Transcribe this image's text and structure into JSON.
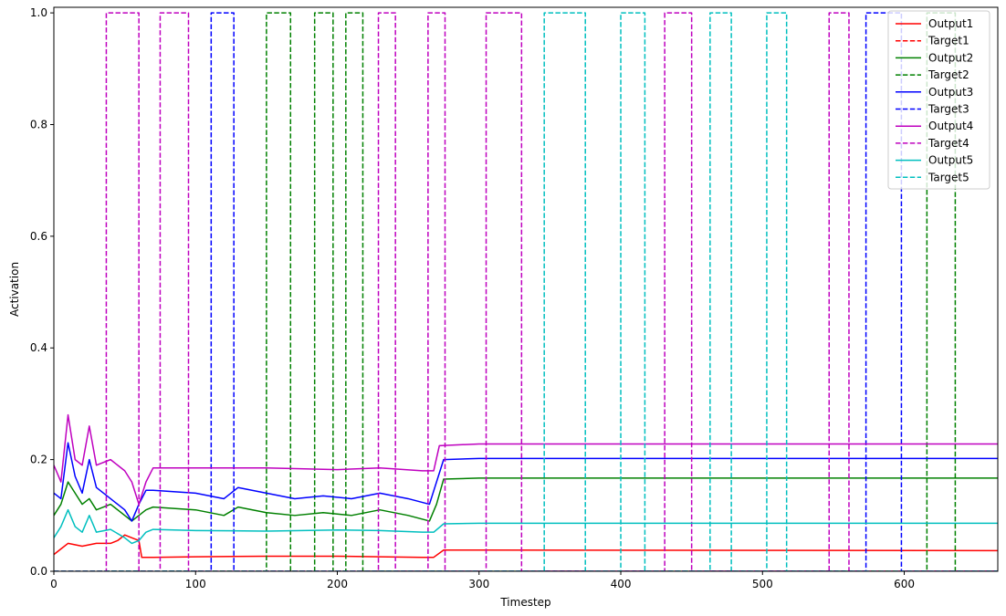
{
  "chart_data": {
    "type": "line",
    "title": "",
    "xlabel": "Timestep",
    "ylabel": "Activation",
    "xlim": [
      0,
      666
    ],
    "ylim": [
      0,
      1.01
    ],
    "xticks": [
      0,
      100,
      200,
      300,
      400,
      500,
      600
    ],
    "yticks": [
      0.0,
      0.2,
      0.4,
      0.6,
      0.8,
      1.0
    ],
    "xtick_labels": [
      "0",
      "100",
      "200",
      "300",
      "400",
      "500",
      "600"
    ],
    "ytick_labels": [
      "0.0",
      "0.2",
      "0.4",
      "0.6",
      "0.8",
      "1.0"
    ],
    "grid": false,
    "legend_position": "top-right",
    "series": [
      {
        "name": "Output1",
        "color": "#ff0000",
        "style": "solid",
        "x": [
          0,
          5,
          10,
          20,
          30,
          40,
          45,
          50,
          55,
          60,
          62,
          70,
          100,
          150,
          200,
          230,
          260,
          268,
          275,
          300,
          666
        ],
        "y": [
          0.03,
          0.04,
          0.05,
          0.045,
          0.05,
          0.05,
          0.055,
          0.065,
          0.06,
          0.055,
          0.025,
          0.025,
          0.026,
          0.027,
          0.027,
          0.026,
          0.025,
          0.025,
          0.038,
          0.038,
          0.037
        ]
      },
      {
        "name": "Target1",
        "color": "#ff0000",
        "style": "dashed",
        "x": [
          0,
          666
        ],
        "y": [
          0,
          0
        ]
      },
      {
        "name": "Output2",
        "color": "#008000",
        "style": "solid",
        "x": [
          0,
          5,
          10,
          15,
          20,
          25,
          30,
          40,
          50,
          55,
          60,
          65,
          70,
          100,
          120,
          130,
          150,
          170,
          190,
          210,
          230,
          250,
          265,
          270,
          275,
          300,
          666
        ],
        "y": [
          0.1,
          0.12,
          0.16,
          0.14,
          0.12,
          0.13,
          0.11,
          0.12,
          0.1,
          0.09,
          0.1,
          0.11,
          0.115,
          0.11,
          0.1,
          0.115,
          0.105,
          0.1,
          0.105,
          0.1,
          0.11,
          0.1,
          0.09,
          0.12,
          0.165,
          0.167,
          0.167
        ]
      },
      {
        "name": "Target2",
        "color": "#008000",
        "style": "dashed",
        "x": [
          0,
          150,
          150,
          167,
          167,
          184,
          184,
          197,
          197,
          206,
          206,
          218,
          218,
          616,
          616,
          636,
          636,
          666
        ],
        "y": [
          0,
          0,
          1,
          1,
          0,
          0,
          1,
          1,
          0,
          0,
          1,
          1,
          0,
          0,
          1,
          1,
          0,
          0
        ]
      },
      {
        "name": "Output3",
        "color": "#0000ff",
        "style": "solid",
        "x": [
          0,
          5,
          10,
          15,
          20,
          25,
          30,
          40,
          50,
          55,
          60,
          65,
          70,
          100,
          120,
          130,
          150,
          170,
          190,
          210,
          230,
          250,
          265,
          270,
          275,
          300,
          666
        ],
        "y": [
          0.14,
          0.13,
          0.23,
          0.17,
          0.14,
          0.2,
          0.15,
          0.13,
          0.11,
          0.09,
          0.12,
          0.145,
          0.145,
          0.14,
          0.13,
          0.15,
          0.14,
          0.13,
          0.135,
          0.13,
          0.14,
          0.13,
          0.12,
          0.16,
          0.2,
          0.202,
          0.202
        ]
      },
      {
        "name": "Target3",
        "color": "#0000ff",
        "style": "dashed",
        "x": [
          0,
          111,
          111,
          127,
          127,
          573,
          573,
          598,
          598,
          666
        ],
        "y": [
          0,
          0,
          1,
          1,
          0,
          0,
          1,
          1,
          0,
          0
        ]
      },
      {
        "name": "Output4",
        "color": "#bf00bf",
        "style": "solid",
        "x": [
          0,
          5,
          10,
          15,
          20,
          25,
          30,
          40,
          50,
          55,
          60,
          65,
          70,
          100,
          150,
          200,
          230,
          260,
          268,
          272,
          300,
          666
        ],
        "y": [
          0.19,
          0.16,
          0.28,
          0.2,
          0.19,
          0.26,
          0.19,
          0.2,
          0.18,
          0.16,
          0.12,
          0.16,
          0.185,
          0.185,
          0.185,
          0.182,
          0.185,
          0.18,
          0.18,
          0.225,
          0.228,
          0.228
        ]
      },
      {
        "name": "Target4",
        "color": "#bf00bf",
        "style": "dashed",
        "x": [
          0,
          37,
          37,
          60,
          60,
          75,
          75,
          95,
          95,
          229,
          229,
          241,
          241,
          264,
          264,
          276,
          276,
          305,
          305,
          330,
          330,
          431,
          431,
          450,
          450,
          547,
          547,
          561,
          561,
          666
        ],
        "y": [
          0,
          0,
          1,
          1,
          0,
          0,
          1,
          1,
          0,
          0,
          1,
          1,
          0,
          0,
          1,
          1,
          0,
          0,
          1,
          1,
          0,
          0,
          1,
          1,
          0,
          0,
          1,
          1,
          0,
          0
        ]
      },
      {
        "name": "Output5",
        "color": "#00bfbf",
        "style": "solid",
        "x": [
          0,
          5,
          10,
          15,
          20,
          25,
          30,
          40,
          50,
          55,
          60,
          65,
          70,
          100,
          150,
          200,
          230,
          260,
          268,
          275,
          300,
          666
        ],
        "y": [
          0.06,
          0.08,
          0.11,
          0.08,
          0.07,
          0.1,
          0.07,
          0.075,
          0.06,
          0.05,
          0.055,
          0.07,
          0.075,
          0.073,
          0.072,
          0.074,
          0.073,
          0.07,
          0.07,
          0.085,
          0.086,
          0.086
        ]
      },
      {
        "name": "Target5",
        "color": "#00bfbf",
        "style": "dashed",
        "x": [
          0,
          346,
          346,
          375,
          375,
          400,
          400,
          417,
          417,
          463,
          463,
          478,
          478,
          503,
          503,
          517,
          517,
          666
        ],
        "y": [
          0,
          0,
          1,
          1,
          0,
          0,
          1,
          1,
          0,
          0,
          1,
          1,
          0,
          0,
          1,
          1,
          0,
          0
        ]
      }
    ]
  }
}
